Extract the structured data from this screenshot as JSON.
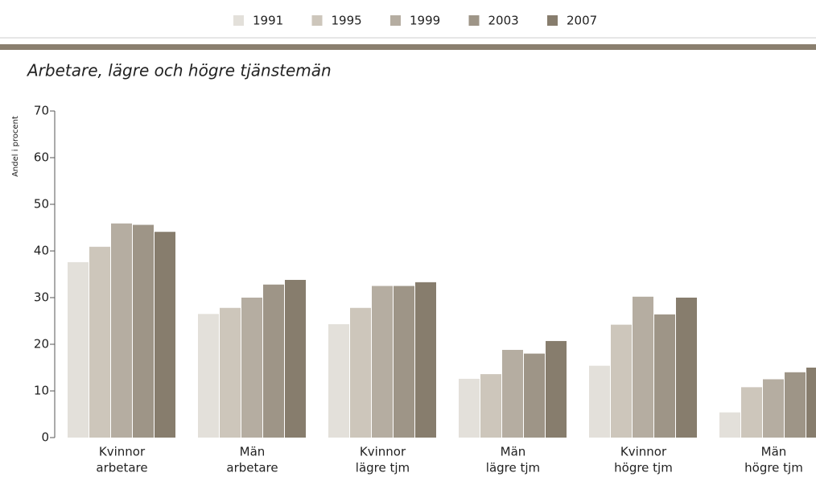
{
  "chart_data": {
    "type": "bar",
    "title": "Arbetare, lägre och högre tjänstemän",
    "y_label": "Andel i procent",
    "categories": [
      [
        "Kvinnor",
        "arbetare"
      ],
      [
        "Män",
        "arbetare"
      ],
      [
        "Kvinnor",
        "lägre tjm"
      ],
      [
        "Män",
        "lägre tjm"
      ],
      [
        "Kvinnor",
        "högre tjm"
      ],
      [
        "Män",
        "högre tjm"
      ]
    ],
    "series": [
      {
        "name": "1991",
        "color": "#e3e0da",
        "values": [
          37.6,
          26.5,
          24.3,
          12.6,
          15.4,
          5.4
        ]
      },
      {
        "name": "1995",
        "color": "#cdc6bb",
        "values": [
          40.9,
          27.8,
          27.8,
          13.6,
          24.2,
          10.8
        ]
      },
      {
        "name": "1999",
        "color": "#b5ada1",
        "values": [
          45.9,
          30.0,
          32.5,
          18.8,
          30.2,
          12.5
        ]
      },
      {
        "name": "2003",
        "color": "#9e9587",
        "values": [
          45.6,
          32.8,
          32.5,
          18.0,
          26.4,
          14.0
        ]
      },
      {
        "name": "2007",
        "color": "#877d6d",
        "values": [
          44.1,
          33.8,
          33.3,
          20.7,
          30.0,
          15.0
        ]
      }
    ],
    "ylim": [
      0,
      70
    ],
    "yticks": [
      0,
      10,
      20,
      30,
      40,
      50,
      60,
      70
    ],
    "legend": "top"
  }
}
